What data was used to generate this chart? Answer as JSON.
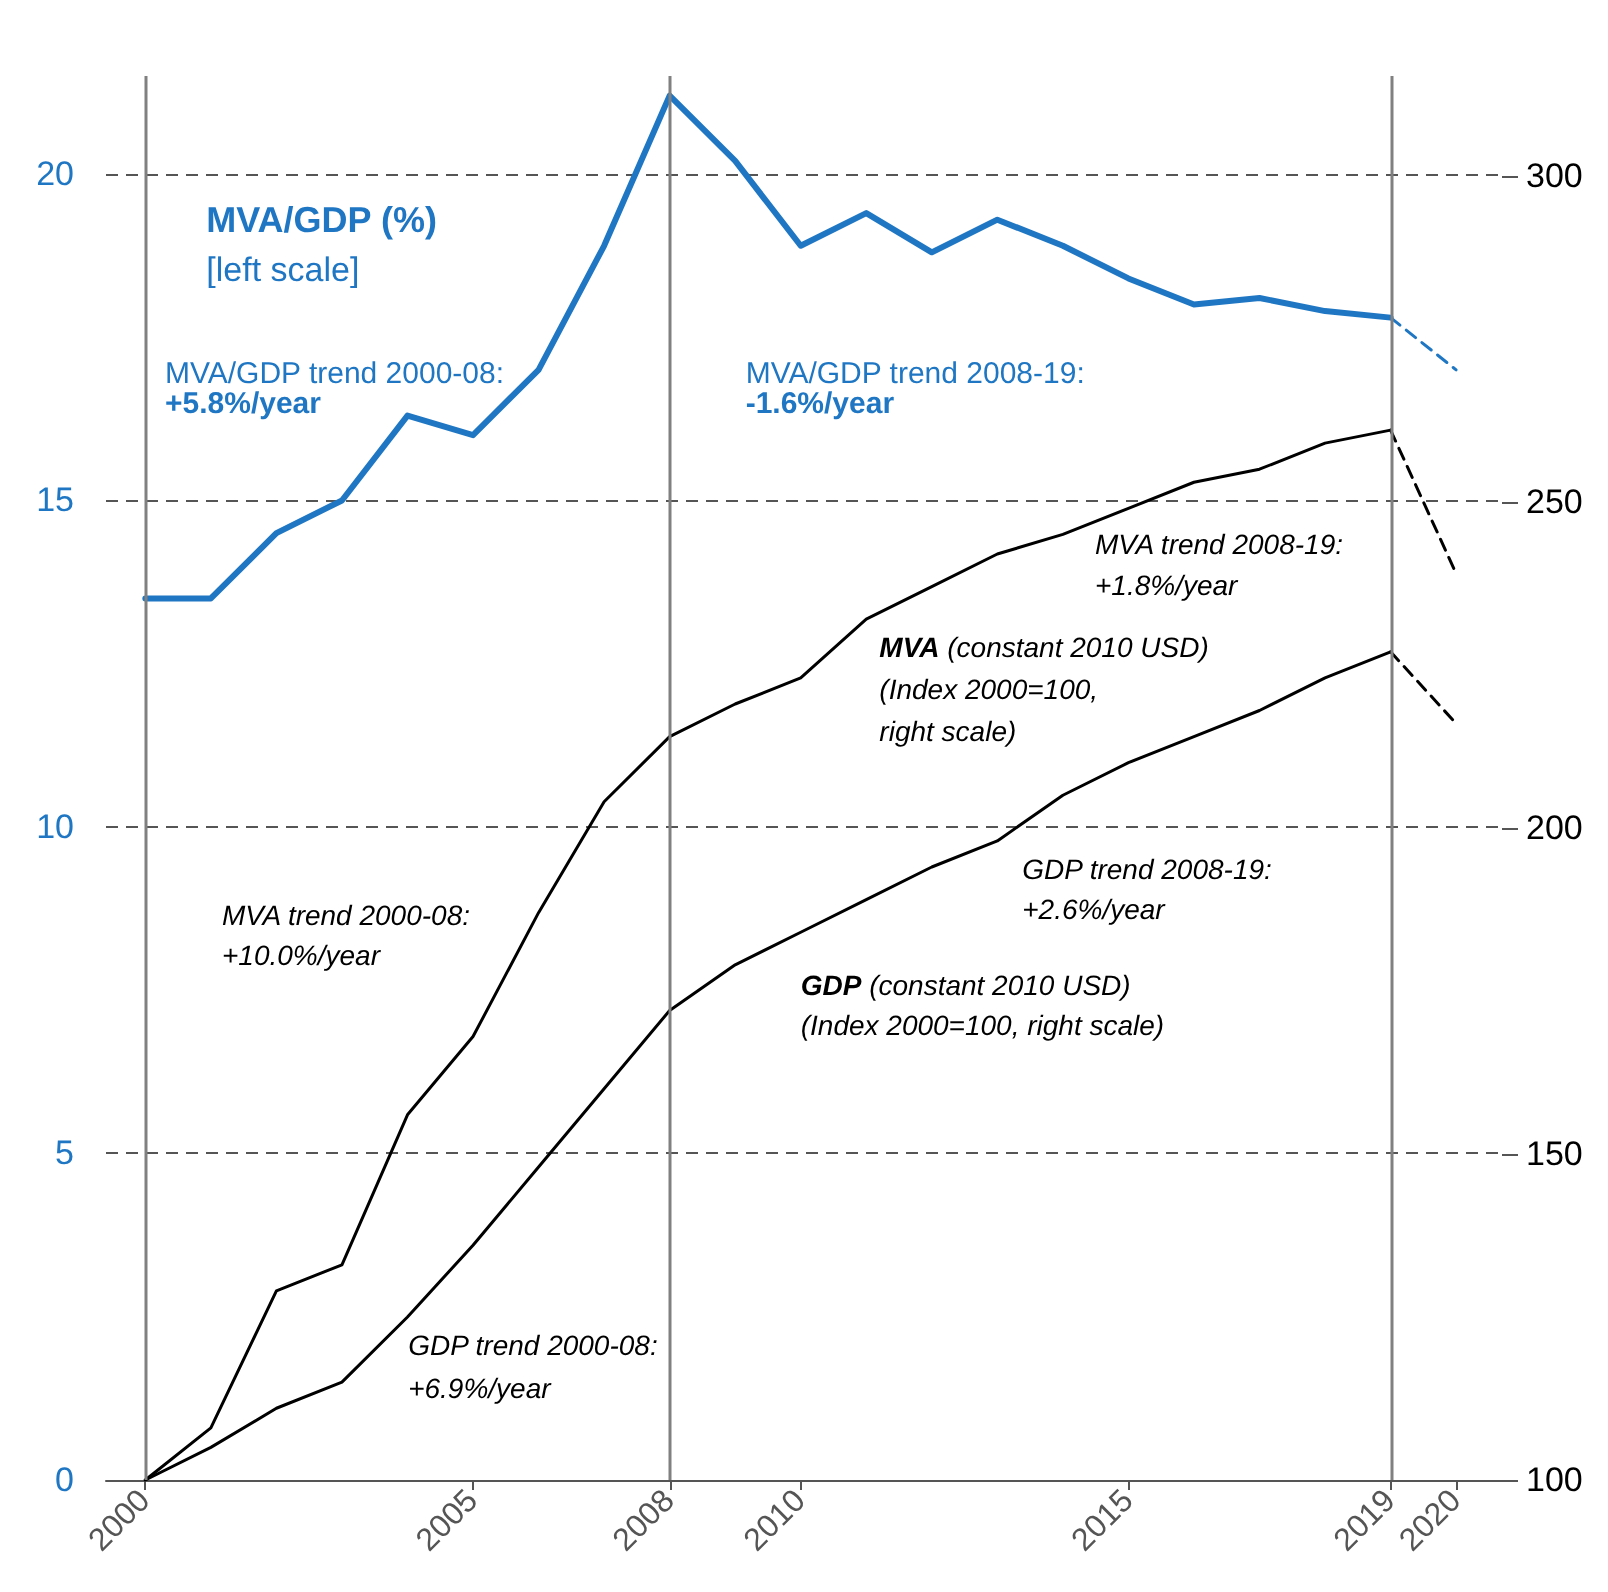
{
  "chart_data": {
    "type": "line",
    "x": [
      2000,
      2001,
      2002,
      2003,
      2004,
      2005,
      2006,
      2007,
      2008,
      2009,
      2010,
      2011,
      2012,
      2013,
      2014,
      2015,
      2016,
      2017,
      2018,
      2019,
      2020
    ],
    "series": [
      {
        "color": "#1f77c4",
        "values": [
          13.5,
          13.5,
          14.5,
          15.0,
          16.3,
          16.0,
          17.0,
          18.9,
          21.2,
          20.2,
          18.9,
          19.4,
          18.8,
          19.3,
          18.9,
          18.4,
          18.0,
          18.1,
          17.9,
          17.8,
          null
        ]
      },
      {
        "color": "#1f77c4",
        "values": [
          null,
          null,
          null,
          null,
          null,
          null,
          null,
          null,
          null,
          null,
          null,
          null,
          null,
          null,
          null,
          null,
          null,
          null,
          null,
          17.8,
          17.0
        ],
        "line_style": "dashed"
      },
      {
        "color": "#000000",
        "axis": "y2",
        "values": [
          100,
          108,
          129,
          133,
          156,
          168,
          187,
          204,
          214,
          219,
          223,
          232,
          237,
          242,
          245,
          249,
          253,
          255,
          259,
          261,
          null
        ]
      },
      {
        "color": "#000000",
        "axis": "y2",
        "values": [
          null,
          null,
          null,
          null,
          null,
          null,
          null,
          null,
          null,
          null,
          null,
          null,
          null,
          null,
          null,
          null,
          null,
          null,
          null,
          261,
          239
        ],
        "line_style": "dashed"
      },
      {
        "color": "#000000",
        "axis": "y2",
        "values": [
          100,
          105,
          111,
          115,
          125,
          136,
          148,
          160,
          172,
          179,
          184,
          189,
          194,
          198,
          205,
          210,
          214,
          218,
          223,
          227,
          null
        ]
      },
      {
        "color": "#000000",
        "axis": "y2",
        "values": [
          null,
          null,
          null,
          null,
          null,
          null,
          null,
          null,
          null,
          null,
          null,
          null,
          null,
          null,
          null,
          null,
          null,
          null,
          null,
          227,
          216
        ],
        "line_style": "dashed"
      }
    ],
    "xlim": [
      1999.4,
      2020.7
    ],
    "xticks": [
      2000,
      2005,
      2008,
      2010,
      2015,
      2019,
      2020
    ],
    "ylim": [
      0,
      21.5
    ],
    "yticks": [
      0,
      5,
      10,
      15,
      20
    ],
    "y2lim": [
      100,
      315.3
    ],
    "y2ticks": [
      100,
      150,
      200,
      250,
      300
    ],
    "ref_lines": [
      {
        "axis": "x",
        "value": 2000,
        "color": "#808080"
      },
      {
        "axis": "x",
        "value": 2008,
        "color": "#808080"
      },
      {
        "axis": "x",
        "value": 2019,
        "color": "#808080"
      }
    ],
    "grid": "y",
    "marker": "none",
    "line_style": "solid",
    "annotations": [
      "MVA/GDP (%)",
      "[left scale]",
      "MVA/GDP trend 2000-08:",
      "+5.8%/year",
      "MVA/GDP trend 2008-19:",
      "-1.6%/year",
      "MVA trend 2008-19:",
      "+1.8%/year",
      "MVA (constant 2010 USD)",
      "(Index 2000=100,",
      "right scale)",
      "MVA trend 2000-08:",
      "+10.0%/year",
      "GDP trend 2008-19:",
      "+2.6%/year",
      "GDP (constant 2010 USD)",
      "(Index 2000=100, right scale)",
      "GDP trend 2000-08:",
      "+6.9%/year"
    ]
  }
}
